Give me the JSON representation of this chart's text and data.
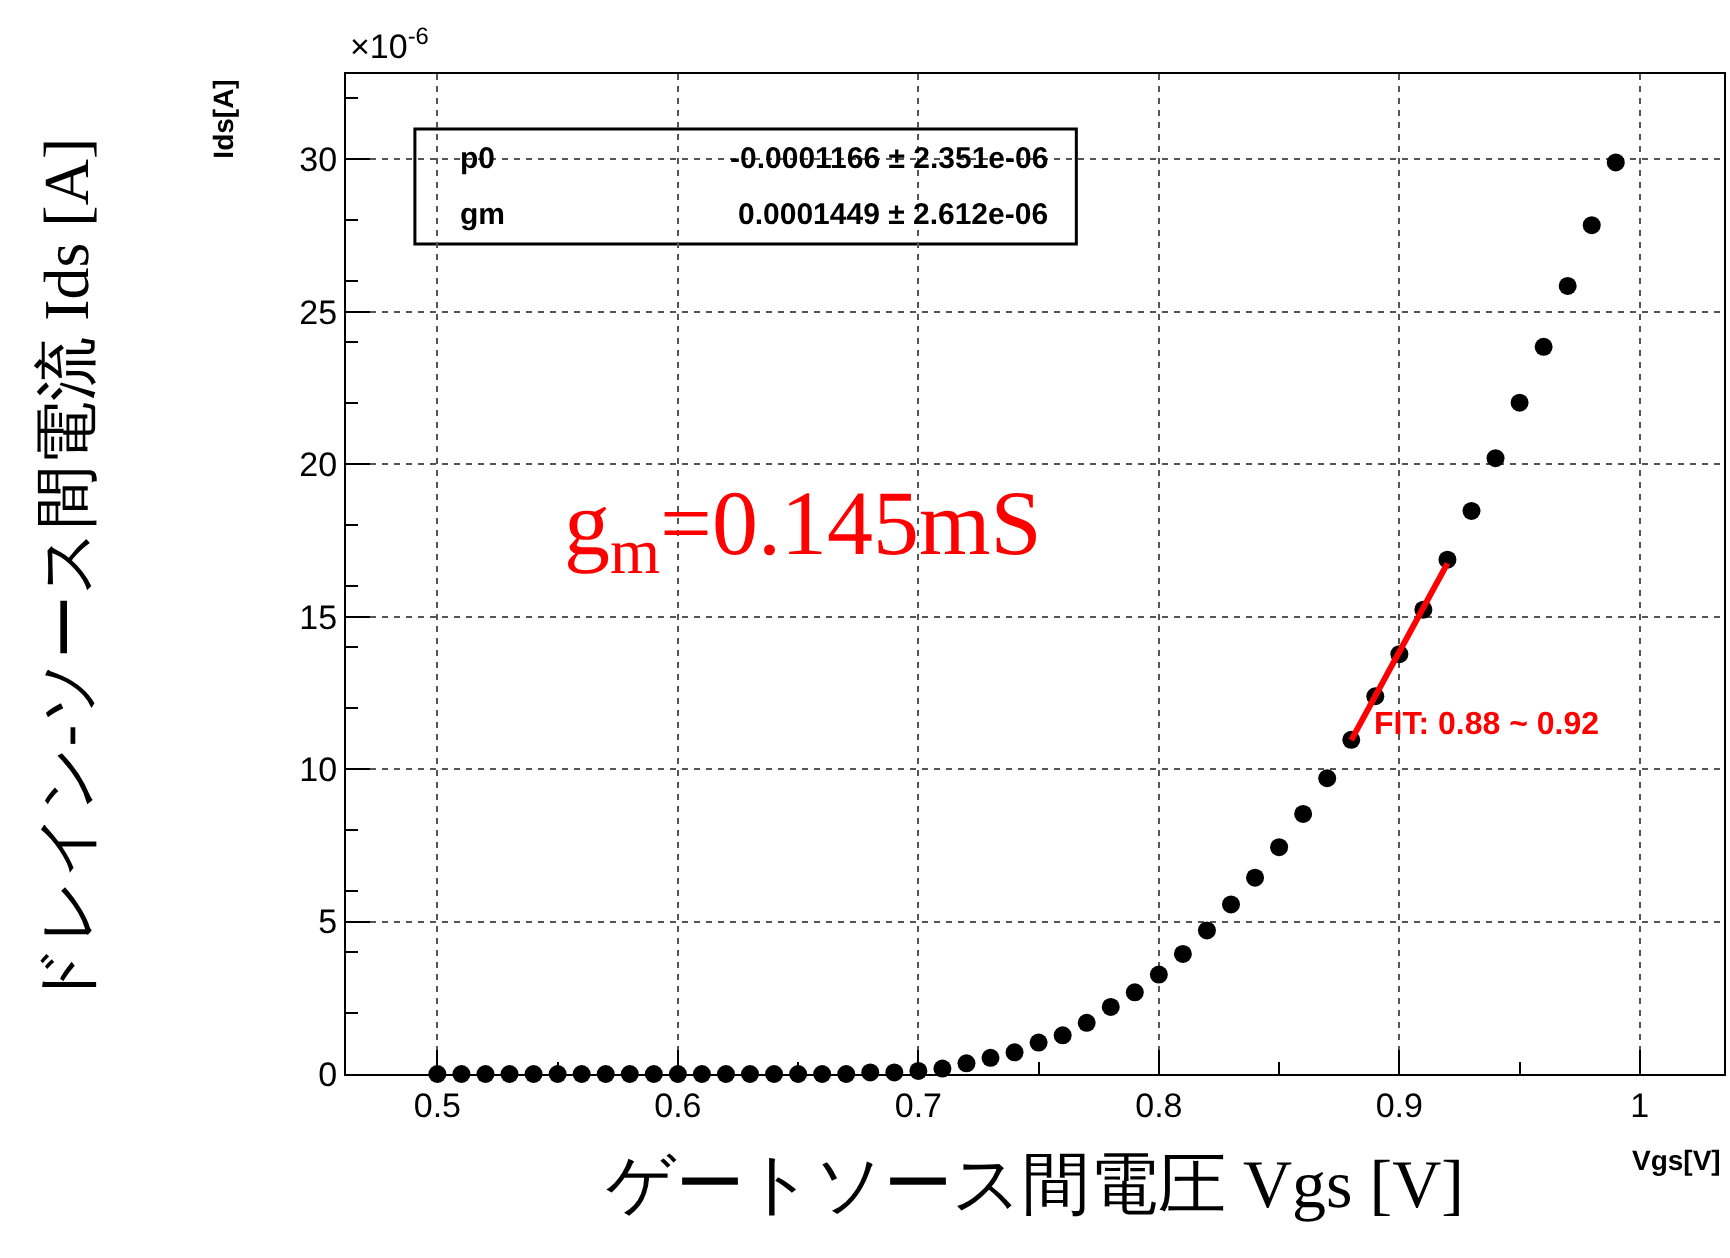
{
  "chart_data": {
    "type": "scatter",
    "xlabel": "ゲートソース間電圧 Vgs [V]",
    "ylabel": "ドレイン-ソース間電流 Ids [A]",
    "x": [
      0.5,
      0.51,
      0.52,
      0.53,
      0.54,
      0.55,
      0.56,
      0.57,
      0.58,
      0.59,
      0.6,
      0.61,
      0.62,
      0.63,
      0.64,
      0.65,
      0.66,
      0.67,
      0.68,
      0.69,
      0.7,
      0.71,
      0.72,
      0.73,
      0.74,
      0.75,
      0.76,
      0.77,
      0.78,
      0.79,
      0.8,
      0.81,
      0.82,
      0.83,
      0.84,
      0.85,
      0.86,
      0.87,
      0.88,
      0.89,
      0.9,
      0.91,
      0.92,
      0.93,
      0.94,
      0.95,
      0.96,
      0.97,
      0.98,
      0.99
    ],
    "series": [
      {
        "color": "#000000",
        "marker": "circle",
        "values": [
          0,
          0,
          0,
          0,
          0,
          0,
          0,
          0,
          0,
          0,
          0,
          0,
          0,
          0,
          0,
          0,
          0,
          0,
          0.05,
          0.05,
          0.1,
          0.18,
          0.35,
          0.53,
          0.71,
          1.03,
          1.27,
          1.68,
          2.2,
          2.68,
          3.26,
          3.94,
          4.71,
          5.56,
          6.44,
          7.44,
          8.53,
          9.7,
          10.96,
          12.39,
          13.77,
          15.23,
          16.87,
          18.47,
          20.2,
          22.02,
          23.85,
          25.85,
          27.84,
          29.9
        ]
      },
      {
        "type": "line",
        "color": "#ff0000",
        "marker": "none",
        "x": [
          0.88,
          0.92
        ],
        "values": [
          10.95,
          16.75
        ]
      }
    ],
    "xlim": [
      0.462,
      1.035
    ],
    "ylim": [
      0,
      32.8
    ],
    "xticks": [
      0.5,
      0.6,
      0.7,
      0.8,
      0.9,
      1
    ],
    "yticks": [
      0,
      5,
      10,
      15,
      20,
      25,
      30
    ],
    "grid": true,
    "annotations": [
      "Ids[A]",
      "Vgs[V]",
      "×10$^{-6}$",
      "p0",
      "-0.0001166 ± 2.351e-06",
      "gm",
      "0.0001449 ± 2.612e-06",
      "g$_{m}$=0.145mS",
      {
        "text": "FIT: 0.88 ~ 0.92",
        "x": 0.88,
        "y": 11
      }
    ]
  }
}
